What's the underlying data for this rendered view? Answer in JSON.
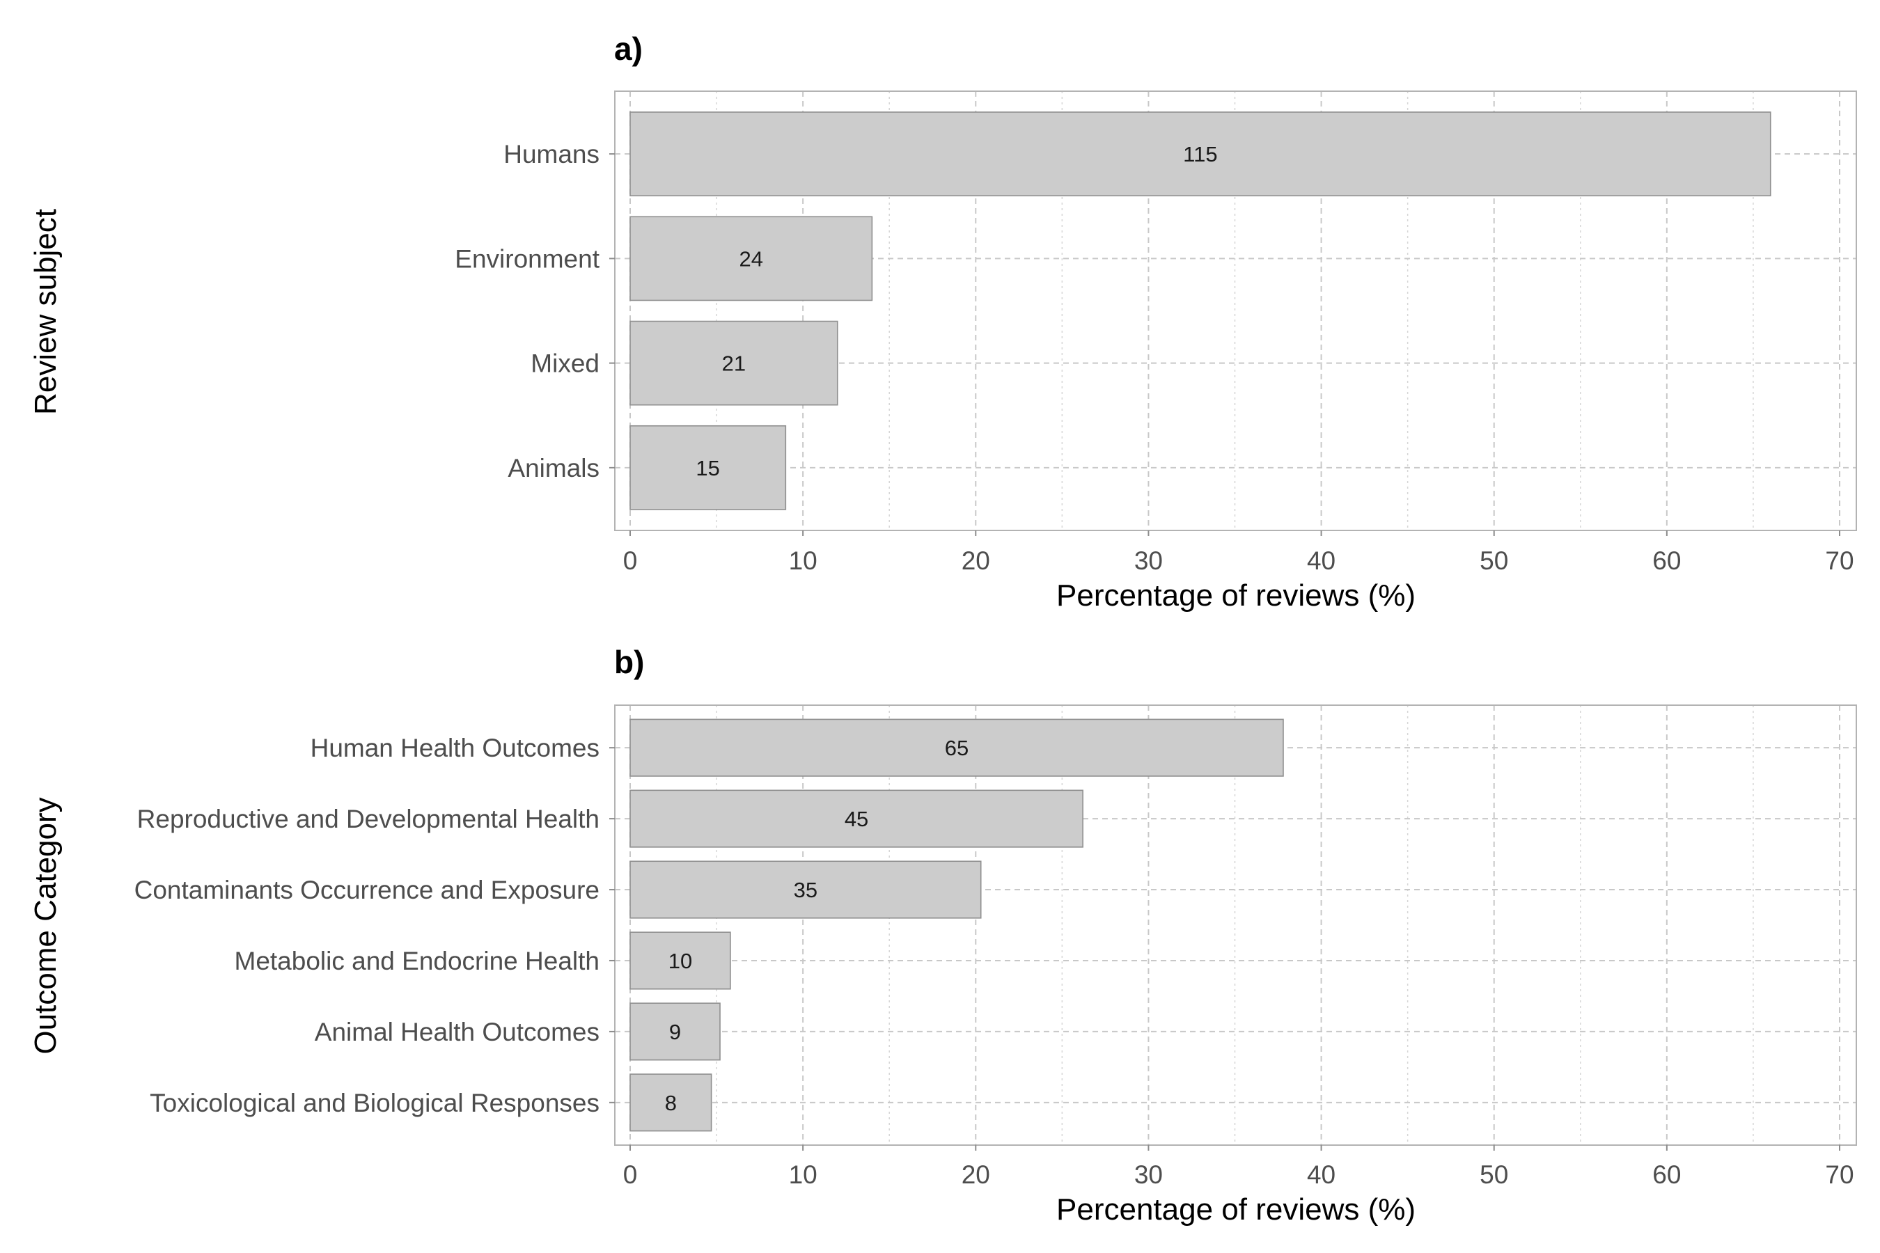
{
  "chart_data": [
    {
      "type": "bar",
      "orientation": "horizontal",
      "panel_tag": "a)",
      "title": "",
      "xlabel": "Percentage of reviews (%)",
      "ylabel": "Review subject",
      "xlim": [
        0,
        70
      ],
      "x_ticks": [
        0,
        10,
        20,
        30,
        40,
        50,
        60,
        70
      ],
      "grid": true,
      "bar_color": "#cccccc",
      "categories": [
        "Humans",
        "Environment",
        "Mixed",
        "Animals"
      ],
      "values": [
        66.0,
        14.0,
        12.0,
        9.0
      ],
      "data_labels": [
        "115",
        "24",
        "21",
        "15"
      ]
    },
    {
      "type": "bar",
      "orientation": "horizontal",
      "panel_tag": "b)",
      "title": "",
      "xlabel": "Percentage of reviews (%)",
      "ylabel": "Outcome Category",
      "xlim": [
        0,
        70
      ],
      "x_ticks": [
        0,
        10,
        20,
        30,
        40,
        50,
        60,
        70
      ],
      "grid": true,
      "bar_color": "#cccccc",
      "categories": [
        "Human Health Outcomes",
        "Reproductive and Developmental Health",
        "Contaminants Occurrence and Exposure",
        "Metabolic and Endocrine Health",
        "Animal Health Outcomes",
        "Toxicological and Biological Responses"
      ],
      "values": [
        37.8,
        26.2,
        20.3,
        5.8,
        5.2,
        4.7
      ],
      "data_labels": [
        "65",
        "45",
        "35",
        "10",
        "9",
        "8"
      ]
    }
  ]
}
